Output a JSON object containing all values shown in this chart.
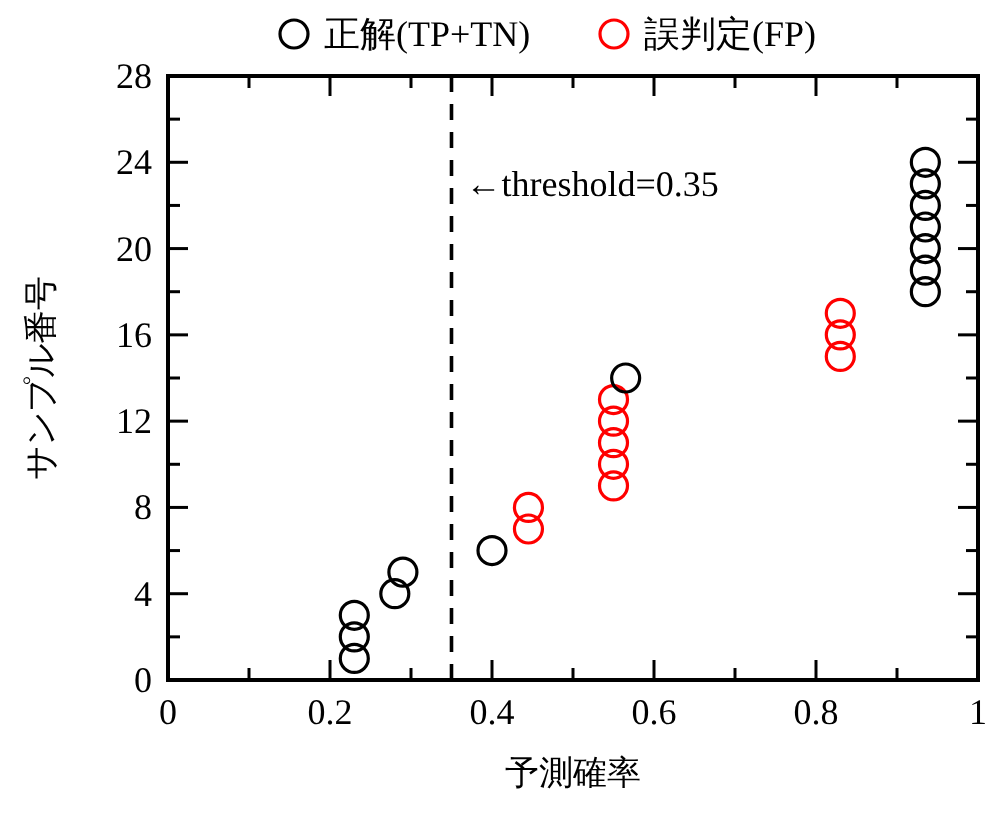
{
  "chart_data": {
    "type": "scatter",
    "xlabel": "予測確率",
    "ylabel": "サンプル番号",
    "marker": "circle",
    "legend": "top",
    "grid": false,
    "xlim": [
      0,
      1
    ],
    "ylim": [
      0,
      28
    ],
    "xticks": [
      0,
      {
        "value": 0.1,
        "label": null
      },
      0.2,
      {
        "value": 0.3,
        "label": null
      },
      0.4,
      {
        "value": 0.5,
        "label": null
      },
      0.6,
      {
        "value": 0.7,
        "label": null
      },
      0.8,
      {
        "value": 0.9,
        "label": null
      },
      1
    ],
    "yticks": [
      0,
      {
        "value": 2,
        "label": null
      },
      4,
      {
        "value": 6,
        "label": null
      },
      8,
      {
        "value": 10,
        "label": null
      },
      12,
      {
        "value": 14,
        "label": null
      },
      16,
      {
        "value": 18,
        "label": null
      },
      20,
      {
        "value": 22,
        "label": null
      },
      24,
      {
        "value": 26,
        "label": null
      },
      28
    ],
    "series": [
      {
        "name": "正解(TP+TN)",
        "color": "#000000",
        "x": [
          0.23,
          0.23,
          0.23,
          0.28,
          0.29,
          0.4,
          0.565,
          0.935,
          0.935,
          0.935,
          0.935,
          0.935,
          0.935,
          0.935
        ],
        "values": [
          1,
          2,
          3,
          4,
          5,
          6,
          14,
          18,
          19,
          20,
          21,
          22,
          23,
          24
        ]
      },
      {
        "name": "誤判定(FP)",
        "color": "#ff0000",
        "x": [
          0.445,
          0.445,
          0.55,
          0.55,
          0.55,
          0.55,
          0.55,
          0.83,
          0.83,
          0.83
        ],
        "values": [
          7,
          8,
          9,
          10,
          11,
          12,
          13,
          15,
          16,
          17
        ]
      }
    ],
    "ref_lines": [
      {
        "axis": "x",
        "value": 0.35,
        "label": "←threshold=0.35",
        "color": "#000000",
        "line_style": "dashed"
      }
    ]
  }
}
